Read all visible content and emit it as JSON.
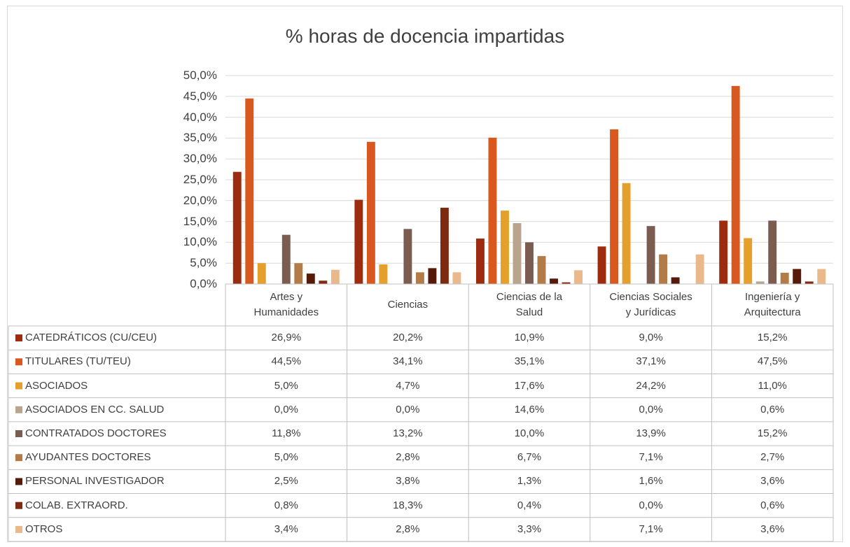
{
  "chart_data": {
    "type": "bar",
    "title": "% horas de docencia impartidas",
    "categories": [
      "Artes y Humanidades",
      "Ciencias",
      "Ciencias de la Salud",
      "Ciencias Sociales y Jurídicas",
      "Ingeniería y Arquitectura"
    ],
    "series": [
      {
        "name": "CATEDRÁTICOS (CU/CEU)",
        "color": "#9c2b10",
        "values": [
          26.9,
          20.2,
          10.9,
          9.0,
          15.2
        ],
        "value_labels": [
          "26,9%",
          "20,2%",
          "10,9%",
          "9,0%",
          "15,2%"
        ]
      },
      {
        "name": "TITULARES (TU/TEU)",
        "color": "#d9581f",
        "values": [
          44.5,
          34.1,
          35.1,
          37.1,
          47.5
        ],
        "value_labels": [
          "44,5%",
          "34,1%",
          "35,1%",
          "37,1%",
          "47,5%"
        ]
      },
      {
        "name": "ASOCIADOS",
        "color": "#e59f2b",
        "values": [
          5.0,
          4.7,
          17.6,
          24.2,
          11.0
        ],
        "value_labels": [
          "5,0%",
          "4,7%",
          "17,6%",
          "24,2%",
          "11,0%"
        ]
      },
      {
        "name": "ASOCIADOS EN CC. SALUD",
        "color": "#b9a48e",
        "values": [
          0.0,
          0.0,
          14.6,
          0.0,
          0.6
        ],
        "value_labels": [
          "0,0%",
          "0,0%",
          "14,6%",
          "0,0%",
          "0,6%"
        ]
      },
      {
        "name": "CONTRATADOS DOCTORES",
        "color": "#7b5c50",
        "values": [
          11.8,
          13.2,
          10.0,
          13.9,
          15.2
        ],
        "value_labels": [
          "11,8%",
          "13,2%",
          "10,0%",
          "13,9%",
          "15,2%"
        ]
      },
      {
        "name": "AYUDANTES DOCTORES",
        "color": "#b27b47",
        "values": [
          5.0,
          2.8,
          6.7,
          7.1,
          2.7
        ],
        "value_labels": [
          "5,0%",
          "2,8%",
          "6,7%",
          "7,1%",
          "2,7%"
        ]
      },
      {
        "name": "PERSONAL INVESTIGADOR",
        "color": "#561a0b",
        "values": [
          2.5,
          3.8,
          1.3,
          1.6,
          3.6
        ],
        "value_labels": [
          "2,5%",
          "3,8%",
          "1,3%",
          "1,6%",
          "3,6%"
        ]
      },
      {
        "name": "COLAB. EXTRAORD.",
        "color": "#7d2a0f",
        "values": [
          0.8,
          18.3,
          0.4,
          0.0,
          0.6
        ],
        "value_labels": [
          "0,8%",
          "18,3%",
          "0,4%",
          "0,0%",
          "0,6%"
        ]
      },
      {
        "name": "OTROS",
        "color": "#e9b98c",
        "values": [
          3.4,
          2.8,
          3.3,
          7.1,
          3.6
        ],
        "value_labels": [
          "3,4%",
          "2,8%",
          "3,3%",
          "7,1%",
          "3,6%"
        ]
      }
    ],
    "ylim": [
      0,
      50
    ],
    "yticks": [
      {
        "value": 0,
        "label": "0,0%"
      },
      {
        "value": 5,
        "label": "5,0%"
      },
      {
        "value": 10,
        "label": "10,0%"
      },
      {
        "value": 15,
        "label": "15,0%"
      },
      {
        "value": 20,
        "label": "20,0%"
      },
      {
        "value": 25,
        "label": "25,0%"
      },
      {
        "value": 30,
        "label": "30,0%"
      },
      {
        "value": 35,
        "label": "35,0%"
      },
      {
        "value": 40,
        "label": "40,0%"
      },
      {
        "value": 45,
        "label": "45,0%"
      },
      {
        "value": 50,
        "label": "50,0%"
      }
    ],
    "grid": true,
    "legend": "table"
  }
}
